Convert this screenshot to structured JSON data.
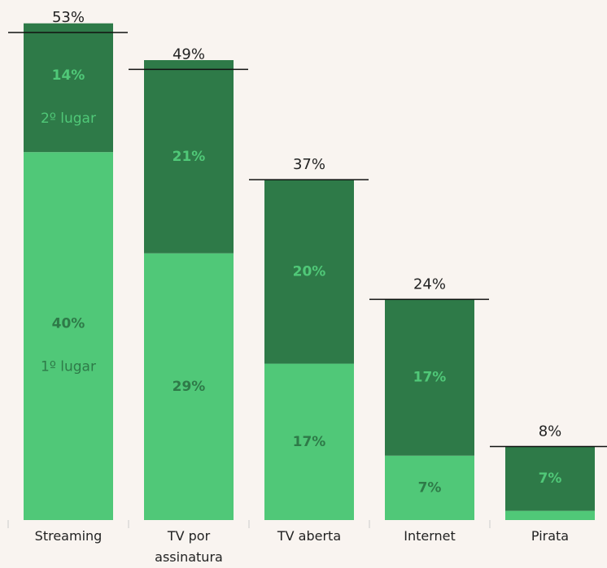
{
  "chart_data": {
    "type": "stacked-bar",
    "categories": [
      "Streaming",
      "TV por assinatura",
      "TV aberta",
      "Internet",
      "Pirata"
    ],
    "series": [
      {
        "name": "1º lugar",
        "color": "#50c878",
        "label_color": "#2e7a48",
        "values": [
          40,
          29,
          17,
          7,
          1
        ],
        "value_labels": [
          "40%",
          "29%",
          "17%",
          "7%",
          null
        ]
      },
      {
        "name": "2º lugar",
        "color": "#2e7a48",
        "label_color": "#50c878",
        "values": [
          14,
          21,
          20,
          17,
          7
        ],
        "value_labels": [
          "14%",
          "21%",
          "20%",
          "17%",
          "7%"
        ]
      }
    ],
    "totals": [
      53,
      49,
      37,
      24,
      8
    ],
    "total_labels": [
      "53%",
      "49%",
      "37%",
      "24%",
      "8%"
    ],
    "ylim": [
      0,
      55
    ]
  }
}
